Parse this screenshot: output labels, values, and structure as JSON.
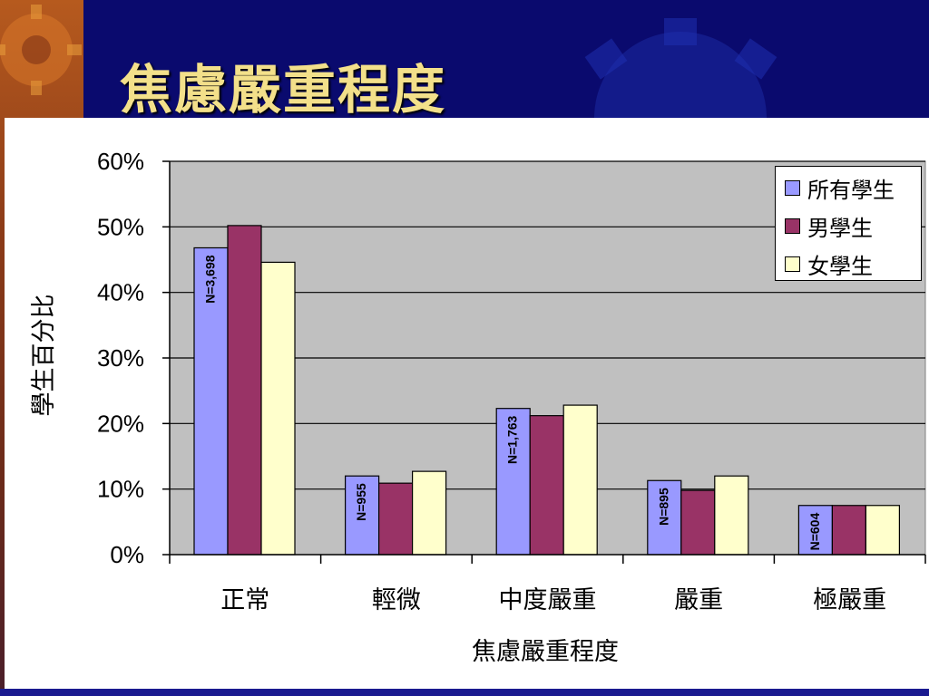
{
  "slide": {
    "title": "焦慮嚴重程度"
  },
  "chart_data": {
    "type": "bar",
    "categories": [
      "正常",
      "輕微",
      "中度嚴重",
      "嚴重",
      "極嚴重"
    ],
    "series": [
      {
        "name": "所有學生",
        "color": "#9999ff",
        "values": [
          46.8,
          12.0,
          22.3,
          11.3,
          7.5
        ]
      },
      {
        "name": "男學生",
        "color": "#993366",
        "values": [
          50.2,
          10.9,
          21.2,
          9.8,
          7.5
        ]
      },
      {
        "name": "女學生",
        "color": "#ffffcc",
        "values": [
          44.6,
          12.7,
          22.8,
          12.0,
          7.5
        ]
      }
    ],
    "annotations": [
      "N=3,698",
      "N=955",
      "N=1,763",
      "N=895",
      "N=604"
    ],
    "xlabel": "焦慮嚴重程度",
    "ylabel": "學生百分比",
    "ylim": [
      0,
      60
    ],
    "yticks": [
      "0%",
      "10%",
      "20%",
      "30%",
      "40%",
      "50%",
      "60%"
    ],
    "grid": true,
    "legend_position": "top-right",
    "plot_background": "#c0c0c0"
  }
}
